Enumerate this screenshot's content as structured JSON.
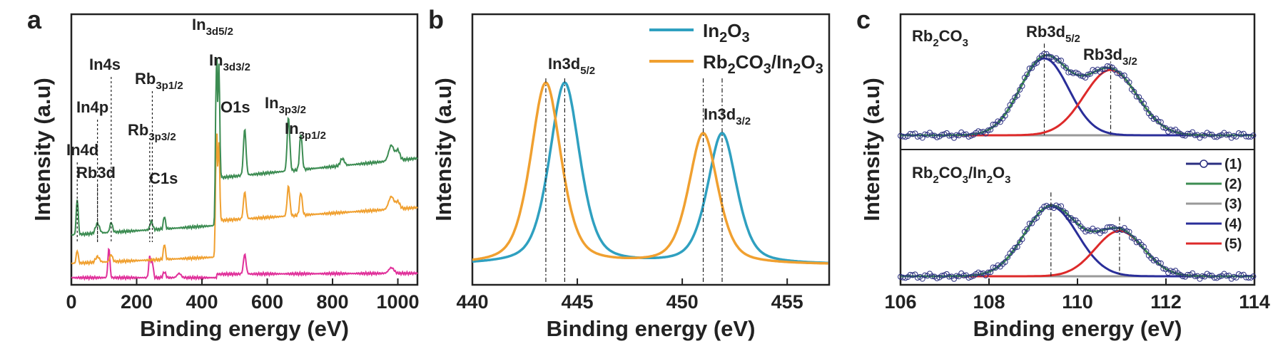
{
  "panels": [
    {
      "letter": "a",
      "xlabel": "Binding energy (eV)",
      "ylabel": "Intensity (a.u)",
      "xlim": [
        0,
        1060
      ],
      "xticks": [
        0,
        200,
        400,
        600,
        800,
        1000
      ],
      "colors": {
        "green": "#3c8c52",
        "orange": "#f0a030",
        "magenta": "#e0309a"
      },
      "annotations": [
        {
          "main": "In4d",
          "sub": "",
          "x": 18
        },
        {
          "main": "Rb3d",
          "sub": "",
          "x": 80
        },
        {
          "main": "In4p",
          "sub": "",
          "x": 80
        },
        {
          "main": "In4s",
          "sub": "",
          "x": 122
        },
        {
          "main": "Rb",
          "sub": "3p3/2",
          "x": 240
        },
        {
          "main": "Rb",
          "sub": "3p1/2",
          "x": 248
        },
        {
          "main": "C1s",
          "sub": "",
          "x": 285
        },
        {
          "main": "In",
          "sub": "3d5/2",
          "x": 444
        },
        {
          "main": "In",
          "sub": "3d3/2",
          "x": 452
        },
        {
          "main": "O1s",
          "sub": "",
          "x": 531
        },
        {
          "main": "In",
          "sub": "3p3/2",
          "x": 665
        },
        {
          "main": "In",
          "sub": "3p1/2",
          "x": 703
        }
      ]
    },
    {
      "letter": "b",
      "xlabel": "Binding energy (eV)",
      "ylabel": "Intensity (a.u)",
      "xlim": [
        440,
        457
      ],
      "xticks": [
        440,
        445,
        450,
        455
      ],
      "colors": {
        "blue": "#2fa0c0",
        "orange": "#f0a030"
      },
      "legend": [
        {
          "pre": "In",
          "s1": "2",
          "mid": "O",
          "s2": "3",
          "tail": ""
        },
        {
          "pre": "Rb",
          "s1": "2",
          "mid": "CO",
          "s2": "3",
          "tail": "/In",
          "s3": "2",
          "tail2": "O",
          "s4": "3"
        }
      ],
      "labels": [
        {
          "main": "In3d",
          "sub": "5/2"
        },
        {
          "main": "In3d",
          "sub": "3/2"
        }
      ],
      "series": [
        {
          "color": "blue",
          "peaks": [
            [
              444.4,
              1.0,
              0.75
            ],
            [
              451.9,
              0.72,
              0.72
            ]
          ]
        },
        {
          "color": "orange",
          "peaks": [
            [
              443.5,
              1.0,
              0.75
            ],
            [
              451.0,
              0.72,
              0.72
            ]
          ]
        }
      ],
      "vlines": [
        443.5,
        444.4,
        451.0,
        451.9
      ]
    },
    {
      "letter": "c",
      "xlabel": "Binding energy (eV)",
      "ylabel": "Intensity (a.u)",
      "xlim": [
        106,
        114
      ],
      "xticks": [
        106,
        108,
        110,
        112,
        114
      ],
      "colors": {
        "raw": "#2a2e80",
        "envelope": "#3c8c52",
        "background": "#999999",
        "p1": "#2a2e99",
        "p2": "#dd2a2a"
      },
      "top": {
        "title_main": "Rb",
        "title_s1": "2",
        "title_mid": "CO",
        "title_s2": "3",
        "peak_labels": [
          {
            "main": "Rb3d",
            "sub": "5/2"
          },
          {
            "main": "Rb3d",
            "sub": "3/2"
          }
        ],
        "peaks": [
          [
            109.25,
            1.0,
            0.55
          ],
          [
            110.75,
            0.85,
            0.6
          ]
        ]
      },
      "bottom": {
        "title": [
          {
            "t": "Rb"
          },
          {
            "t": "2",
            "s": true
          },
          {
            "t": "CO"
          },
          {
            "t": "3",
            "s": true
          },
          {
            "t": "/In"
          },
          {
            "t": "2",
            "s": true
          },
          {
            "t": "O"
          },
          {
            "t": "3",
            "s": true
          }
        ],
        "peaks": [
          [
            109.4,
            1.0,
            0.6
          ],
          [
            110.95,
            0.65,
            0.55
          ]
        ]
      },
      "legend": [
        "(1)",
        "(2)",
        "(3)",
        "(4)",
        "(5)"
      ]
    }
  ]
}
